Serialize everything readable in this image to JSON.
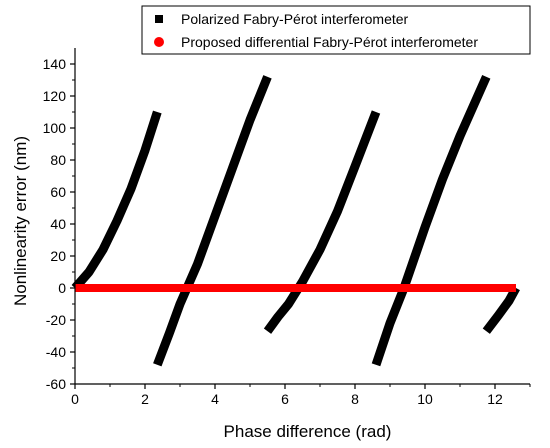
{
  "chart_data": {
    "type": "line",
    "xlabel": "Phase difference (rad)",
    "ylabel": "Nonlinearity error (nm)",
    "xlim": [
      0,
      13
    ],
    "ylim": [
      -60,
      150
    ],
    "x_ticks": [
      0,
      2,
      4,
      6,
      8,
      10,
      12
    ],
    "y_ticks": [
      -60,
      -40,
      -20,
      0,
      20,
      40,
      60,
      80,
      100,
      120,
      140
    ],
    "legend_position": "top",
    "series": [
      {
        "name": "Polarized Fabry-Pérot interferometer",
        "color": "#000000",
        "marker": "square",
        "segments": [
          {
            "x": [
              0.0,
              0.4,
              0.8,
              1.2,
              1.6,
              2.0,
              2.35
            ],
            "y": [
              0,
              10,
              24,
              42,
              62,
              86,
              110
            ]
          },
          {
            "x": [
              2.35,
              2.7,
              3.0,
              3.5,
              4.0,
              4.5,
              5.0,
              5.5
            ],
            "y": [
              -48,
              -28,
              -10,
              15,
              45,
              75,
              105,
              132
            ]
          },
          {
            "x": [
              5.5,
              5.8,
              6.1,
              6.5,
              7.0,
              7.5,
              8.0,
              8.6
            ],
            "y": [
              -27,
              -18,
              -10,
              4,
              24,
              48,
              76,
              110
            ]
          },
          {
            "x": [
              8.6,
              9.0,
              9.4,
              10.0,
              10.5,
              11.0,
              11.75
            ],
            "y": [
              -48,
              -22,
              0,
              38,
              68,
              95,
              132
            ]
          },
          {
            "x": [
              11.75,
              12.1,
              12.4,
              12.6
            ],
            "y": [
              -27,
              -17,
              -8,
              0
            ]
          }
        ]
      },
      {
        "name": "Proposed differential Fabry-Pérot interferometer",
        "color": "#ff0000",
        "marker": "circle",
        "segments": [
          {
            "x": [
              0.0,
              12.6
            ],
            "y": [
              0,
              0
            ]
          }
        ]
      }
    ]
  }
}
